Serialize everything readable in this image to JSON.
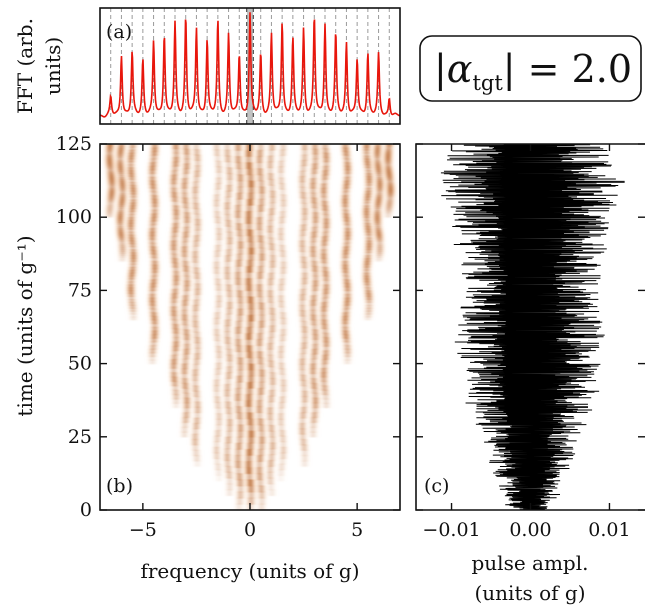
{
  "chart_data": [
    {
      "id": "a",
      "type": "line",
      "panel_label": "(a)",
      "ylabel": "FFT (arb. units)",
      "xlim": [
        -7,
        7
      ],
      "grid": "dashed vertical reference lines at integer frequencies",
      "series": [
        {
          "color": "#e8160c",
          "peaks_x": [
            -6.5,
            -6,
            -5.5,
            -5,
            -4.5,
            -4,
            -3.5,
            -3,
            -2.5,
            -2,
            -1.5,
            -1,
            -0.5,
            0,
            0.5,
            1,
            1.5,
            2,
            2.5,
            3,
            3.5,
            4,
            4.5,
            5,
            5.5,
            6,
            6.5
          ],
          "peaks_y": [
            0.18,
            0.6,
            0.62,
            0.55,
            0.72,
            0.8,
            0.9,
            0.97,
            0.85,
            0.75,
            0.92,
            0.8,
            0.6,
            1.0,
            0.6,
            0.8,
            0.92,
            0.75,
            0.85,
            0.97,
            0.9,
            0.8,
            0.72,
            0.55,
            0.62,
            0.6,
            0.18
          ]
        }
      ]
    },
    {
      "id": "b",
      "type": "heatmap",
      "panel_label": "(b)",
      "xlabel": "frequency (units of g)",
      "ylabel": "time (units of g⁻¹)",
      "xlim": [
        -7,
        7
      ],
      "ylim": [
        0,
        125
      ],
      "xticks": [
        "−5",
        "0",
        "5"
      ],
      "xtick_values": [
        -5,
        0,
        5
      ],
      "yticks": [
        "0",
        "25",
        "50",
        "75",
        "100",
        "125"
      ],
      "ytick_values": [
        0,
        25,
        50,
        75,
        100,
        125
      ],
      "colormap": "white-orange-dark-red",
      "ridges": [
        {
          "x": 0.0,
          "t_start": 0,
          "intensity": 1.0
        },
        {
          "x": -0.5,
          "t_start": 0,
          "intensity": 0.75
        },
        {
          "x": 0.5,
          "t_start": 0,
          "intensity": 0.75
        },
        {
          "x": -1.0,
          "t_start": 5,
          "intensity": 0.6
        },
        {
          "x": 1.0,
          "t_start": 5,
          "intensity": 0.6
        },
        {
          "x": -1.5,
          "t_start": 10,
          "intensity": 0.45
        },
        {
          "x": 1.5,
          "t_start": 10,
          "intensity": 0.45
        },
        {
          "x": -2.5,
          "t_start": 15,
          "intensity": 0.6
        },
        {
          "x": 2.5,
          "t_start": 15,
          "intensity": 0.6
        },
        {
          "x": -3.0,
          "t_start": 25,
          "intensity": 0.75
        },
        {
          "x": 3.0,
          "t_start": 25,
          "intensity": 0.75
        },
        {
          "x": -3.5,
          "t_start": 35,
          "intensity": 0.8
        },
        {
          "x": 3.5,
          "t_start": 35,
          "intensity": 0.8
        },
        {
          "x": -4.5,
          "t_start": 50,
          "intensity": 0.85
        },
        {
          "x": 4.5,
          "t_start": 50,
          "intensity": 0.85
        },
        {
          "x": -5.5,
          "t_start": 65,
          "intensity": 0.85
        },
        {
          "x": 5.5,
          "t_start": 65,
          "intensity": 0.85
        },
        {
          "x": -6.0,
          "t_start": 85,
          "intensity": 0.9
        },
        {
          "x": 6.0,
          "t_start": 85,
          "intensity": 0.9
        },
        {
          "x": -6.5,
          "t_start": 100,
          "intensity": 0.95
        },
        {
          "x": 6.5,
          "t_start": 100,
          "intensity": 0.95
        }
      ]
    },
    {
      "id": "c",
      "type": "line",
      "panel_label": "(c)",
      "xlabel": "pulse ampl. (units of g)",
      "xlim": [
        -0.0145,
        0.0145
      ],
      "ylim": [
        0,
        125
      ],
      "xticks": [
        "−0.01",
        "0.00",
        "0.01"
      ],
      "xtick_values": [
        -0.01,
        0.0,
        0.01
      ],
      "color": "#000000",
      "envelope_t": [
        0,
        10,
        25,
        40,
        50,
        60,
        75,
        90,
        100,
        115,
        125
      ],
      "envelope_amp": [
        0.0028,
        0.0045,
        0.0065,
        0.0085,
        0.009,
        0.0095,
        0.0085,
        0.0095,
        0.0105,
        0.0125,
        0.009
      ]
    }
  ],
  "badge": {
    "lhs": "|α",
    "subscript": "tgt",
    "rhs": "| = 2.0"
  }
}
